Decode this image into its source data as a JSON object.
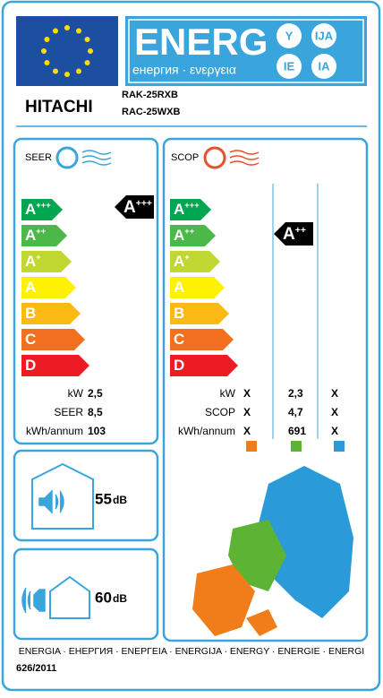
{
  "header": {
    "energy": "ENERG",
    "suffixes": [
      "Y",
      "IJA",
      "IE",
      "IA"
    ],
    "subtitle": "енергия · ενεργεια"
  },
  "supplier": {
    "brand": "HITACHI",
    "models": [
      "RAK-25RXB",
      "RAC-25WXB"
    ]
  },
  "classes": [
    {
      "letter": "A",
      "plus": "+++",
      "color": "#00a651"
    },
    {
      "letter": "A",
      "plus": "++",
      "color": "#4cb848"
    },
    {
      "letter": "A",
      "plus": "+",
      "color": "#bfd730"
    },
    {
      "letter": "A",
      "plus": null,
      "color": "#fff200"
    },
    {
      "letter": "B",
      "plus": null,
      "color": "#fdb913"
    },
    {
      "letter": "C",
      "plus": null,
      "color": "#f37021"
    },
    {
      "letter": "D",
      "plus": null,
      "color": "#ed1c24"
    }
  ],
  "cooling": {
    "label": "SEER",
    "rating": {
      "letter": "A",
      "plus": "+++"
    },
    "rows": [
      {
        "label": "kW",
        "values": [
          "2,5"
        ]
      },
      {
        "label": "SEER",
        "values": [
          "8,5"
        ]
      },
      {
        "label": "kWh/annum",
        "values": [
          "103"
        ]
      }
    ]
  },
  "heating": {
    "label": "SCOP",
    "rating": {
      "letter": "A",
      "plus": "++"
    },
    "zones": [
      "#f07d1a",
      "#5db333",
      "#2a9ad8"
    ],
    "rows": [
      {
        "label": "kW",
        "values": [
          "X",
          "2,3",
          "X"
        ]
      },
      {
        "label": "SCOP",
        "values": [
          "X",
          "4,7",
          "X"
        ]
      },
      {
        "label": "kWh/annum",
        "values": [
          "X",
          "691",
          "X"
        ]
      }
    ]
  },
  "noise": {
    "indoor": {
      "value": "55",
      "unit": "dB"
    },
    "outdoor": {
      "value": "60",
      "unit": "dB"
    }
  },
  "footer": {
    "languages": "ENERGIA · ЕНЕРГИЯ · ΕΝΕΡΓΕΙΑ · ENERGIJA · ENERGY · ENERGIE · ENERGI",
    "regulation": "626/2011"
  }
}
